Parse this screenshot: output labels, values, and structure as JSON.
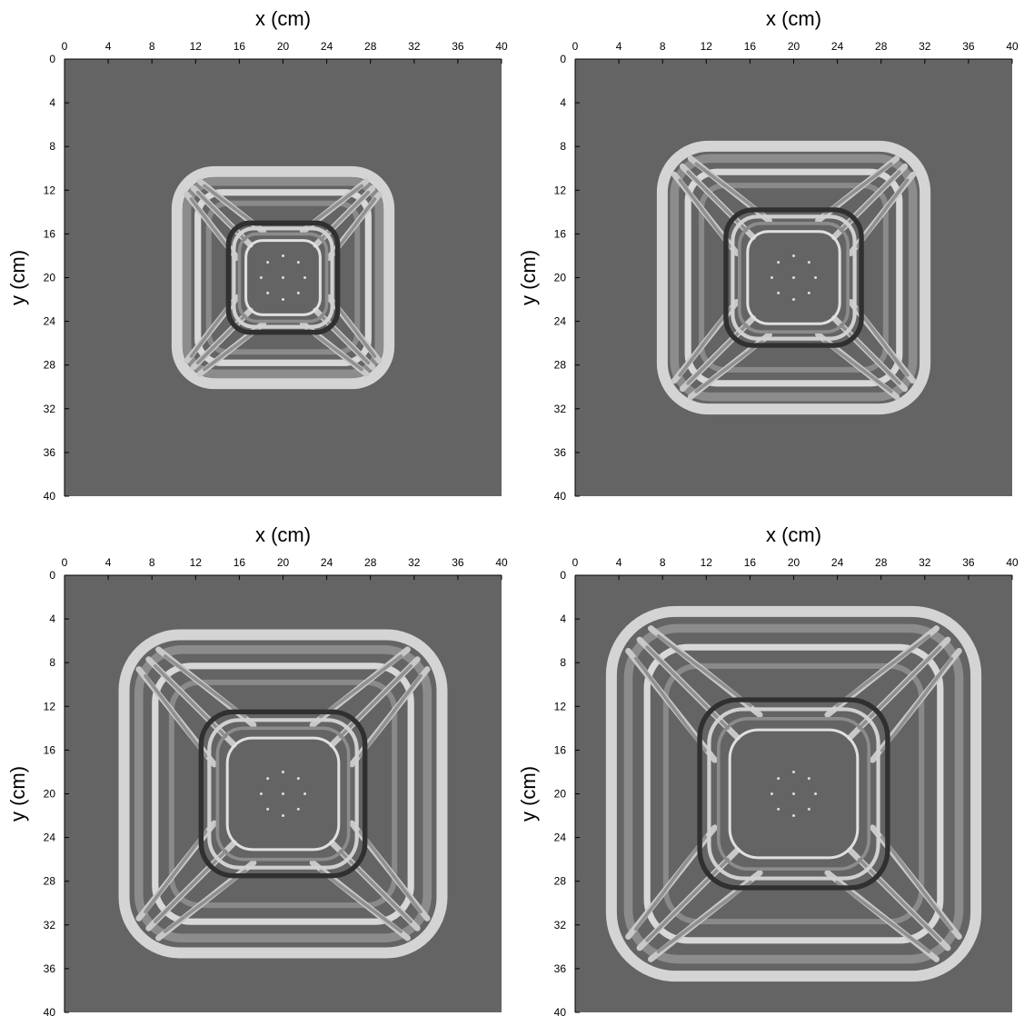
{
  "chart_data": [
    {
      "type": "image",
      "xlabel": "x (cm)",
      "ylabel": "y (cm)",
      "xlim": [
        0,
        40
      ],
      "ylim": [
        0,
        40
      ],
      "y_inverted": true,
      "xticks": [
        0,
        4,
        8,
        12,
        16,
        20,
        24,
        28,
        32,
        36,
        40
      ],
      "yticks": [
        0,
        4,
        8,
        12,
        16,
        20,
        24,
        28,
        32,
        36,
        40
      ],
      "background": "#646464"
    },
    {
      "type": "image",
      "xlabel": "x (cm)",
      "ylabel": "y (cm)",
      "xlim": [
        0,
        40
      ],
      "ylim": [
        0,
        40
      ],
      "y_inverted": true,
      "xticks": [
        0,
        4,
        8,
        12,
        16,
        20,
        24,
        28,
        32,
        36,
        40
      ],
      "yticks": [
        0,
        4,
        8,
        12,
        16,
        20,
        24,
        28,
        32,
        36,
        40
      ],
      "background": "#646464"
    },
    {
      "type": "image",
      "xlabel": "x (cm)",
      "ylabel": "y (cm)",
      "xlim": [
        0,
        40
      ],
      "ylim": [
        0,
        40
      ],
      "y_inverted": true,
      "xticks": [
        0,
        4,
        8,
        12,
        16,
        20,
        24,
        28,
        32,
        36,
        40
      ],
      "yticks": [
        0,
        4,
        8,
        12,
        16,
        20,
        24,
        28,
        32,
        36,
        40
      ],
      "background": "#646464"
    },
    {
      "type": "image",
      "xlabel": "x (cm)",
      "ylabel": "y (cm)",
      "xlim": [
        0,
        40
      ],
      "ylim": [
        0,
        40
      ],
      "y_inverted": true,
      "xticks": [
        0,
        4,
        8,
        12,
        16,
        20,
        24,
        28,
        32,
        36,
        40
      ],
      "yticks": [
        0,
        4,
        8,
        12,
        16,
        20,
        24,
        28,
        32,
        36,
        40
      ],
      "background": "#646464"
    }
  ]
}
